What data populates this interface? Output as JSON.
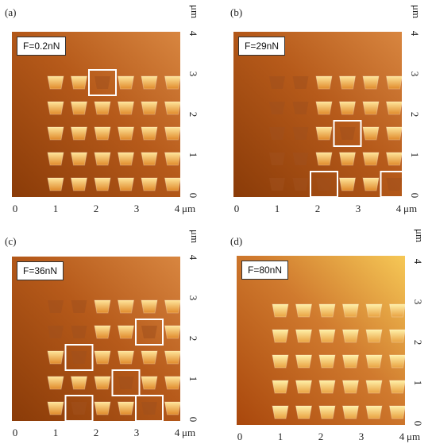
{
  "unit": "μm",
  "panels": [
    {
      "label": "(a)",
      "force": "F=0.2nN",
      "x_ticks": [
        "0",
        "1",
        "2",
        "3",
        "4"
      ],
      "y_ticks": [
        "0",
        "1",
        "2",
        "3",
        "4"
      ],
      "palette": {
        "dark": "#8a3b08",
        "mid": "#b65a1a",
        "light": "#d88640"
      },
      "highlighted_dots": [
        [
          2,
          4
        ]
      ]
    },
    {
      "label": "(b)",
      "force": "F=29nN",
      "x_ticks": [
        "0",
        "1",
        "2",
        "3",
        "4"
      ],
      "y_ticks": [
        "0",
        "1",
        "2",
        "3",
        "4"
      ],
      "palette": {
        "dark": "#8a3b08",
        "mid": "#b65a1a",
        "light": "#d88640"
      },
      "highlighted_dots": [
        [
          3,
          2
        ],
        [
          2,
          0
        ],
        [
          5,
          0
        ]
      ]
    },
    {
      "label": "(c)",
      "force": "F=36nN",
      "x_ticks": [
        "0",
        "1",
        "2",
        "3",
        "4"
      ],
      "y_ticks": [
        "0",
        "1",
        "2",
        "3",
        "4"
      ],
      "palette": {
        "dark": "#8a3b08",
        "mid": "#b65a1a",
        "light": "#d88640"
      },
      "highlighted_dots": [
        [
          4,
          3
        ],
        [
          1,
          2
        ],
        [
          3,
          1
        ],
        [
          1,
          0
        ],
        [
          4,
          0
        ]
      ]
    },
    {
      "label": "(d)",
      "force": "F=80nN",
      "x_ticks": [
        "0",
        "1",
        "2",
        "3",
        "4"
      ],
      "y_ticks": [
        "0",
        "1",
        "2",
        "3",
        "4"
      ],
      "palette": {
        "dark": "#a9470c",
        "mid": "#d07a2e",
        "light": "#f6c856"
      },
      "highlighted_dots": []
    }
  ]
}
